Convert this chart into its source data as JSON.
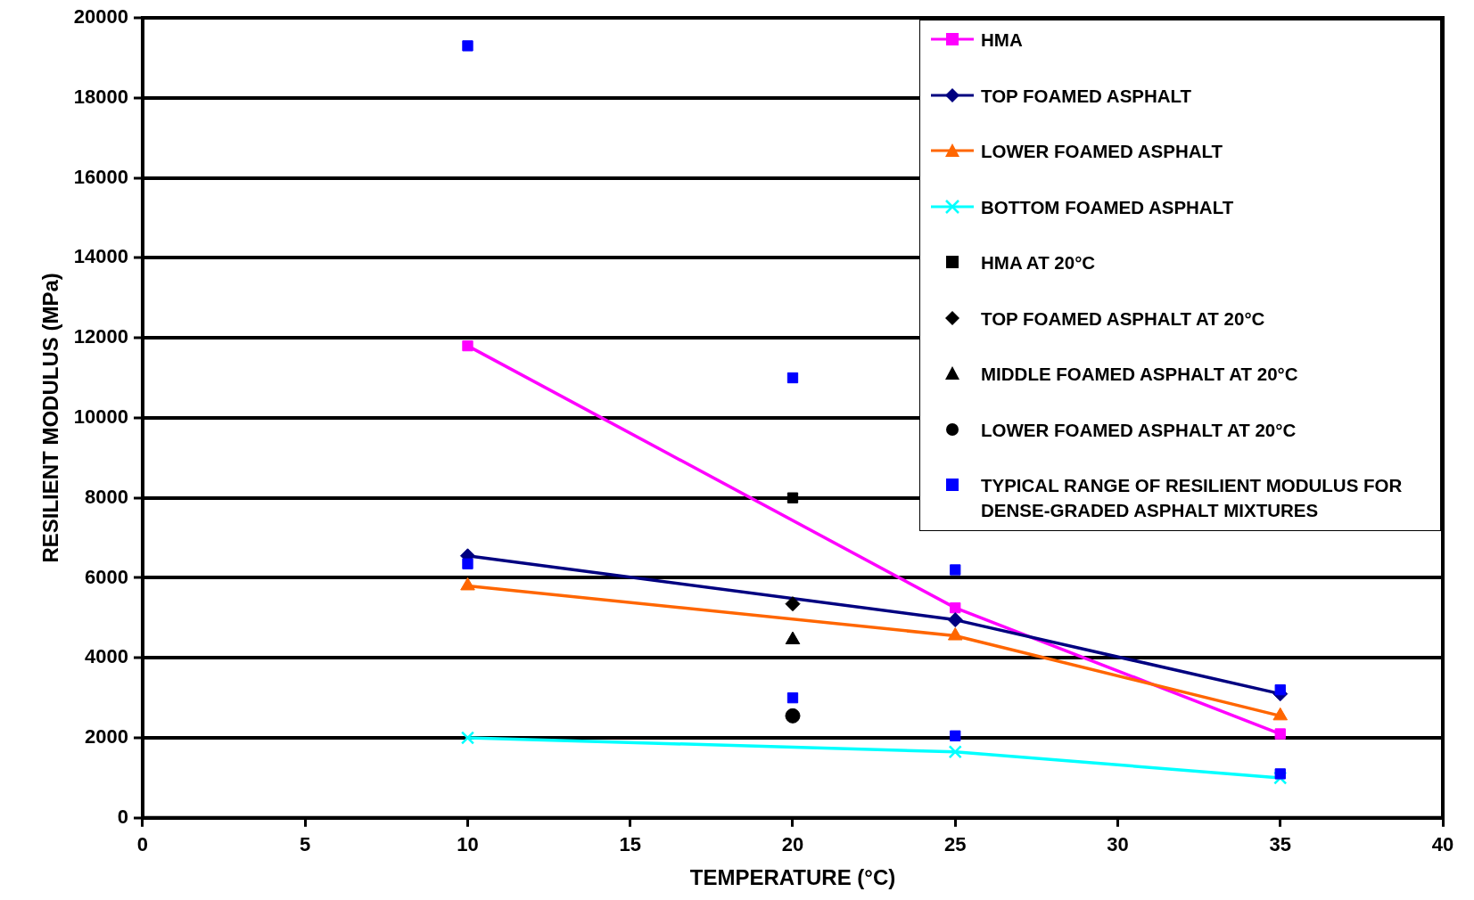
{
  "chart_data": {
    "type": "scatter",
    "xlabel": "TEMPERATURE (°C)",
    "ylabel": "RESILIENT MODULUS (MPa)",
    "xlim": [
      0,
      40
    ],
    "xticks": [
      0,
      5,
      10,
      15,
      20,
      25,
      30,
      35,
      40
    ],
    "ylim": [
      0,
      20000
    ],
    "yticks": [
      0,
      2000,
      4000,
      6000,
      8000,
      10000,
      12000,
      14000,
      16000,
      18000,
      20000
    ],
    "grid": "y",
    "legend": "top right",
    "series": [
      {
        "name": "HMA",
        "type": "line",
        "marker": "square",
        "color": "#ff00ff",
        "x": [
          10,
          25,
          35
        ],
        "values": [
          11800,
          5250,
          2100
        ]
      },
      {
        "name": "TOP FOAMED ASPHALT",
        "type": "line",
        "marker": "diamond",
        "color": "#000080",
        "x": [
          10,
          25,
          35
        ],
        "values": [
          6550,
          4950,
          3100
        ]
      },
      {
        "name": "LOWER FOAMED ASPHALT",
        "type": "line",
        "marker": "triangle",
        "color": "#ff6600",
        "x": [
          10,
          25,
          35
        ],
        "values": [
          5800,
          4550,
          2550
        ]
      },
      {
        "name": "BOTTOM FOAMED ASPHALT",
        "type": "line",
        "marker": "cross",
        "color": "#00ffff",
        "x": [
          10,
          25,
          35
        ],
        "values": [
          2000,
          1650,
          1000
        ]
      },
      {
        "name": "HMA AT 20°C",
        "marker": "square",
        "color": "#000000",
        "x": [
          20
        ],
        "values": [
          8000
        ]
      },
      {
        "name": "TOP FOAMED ASPHALT AT 20°C",
        "marker": "diamond",
        "color": "#000000",
        "x": [
          20
        ],
        "values": [
          5350
        ]
      },
      {
        "name": "MIDDLE FOAMED ASPHALT AT 20°C",
        "marker": "triangle",
        "color": "#000000",
        "x": [
          20
        ],
        "values": [
          4450
        ]
      },
      {
        "name": "LOWER FOAMED ASPHALT AT 20°C",
        "marker": "circle",
        "color": "#000000",
        "x": [
          20
        ],
        "values": [
          2550
        ]
      },
      {
        "name": "TYPICAL RANGE OF RESILIENT MODULUS FOR DENSE-GRADED ASPHALT MIXTURES",
        "marker": "square",
        "color": "#0000ff",
        "x": [
          10,
          10,
          20,
          20,
          25,
          25,
          35,
          35
        ],
        "values": [
          19300,
          6350,
          11000,
          3000,
          6200,
          2050,
          3200,
          1100
        ]
      }
    ]
  }
}
